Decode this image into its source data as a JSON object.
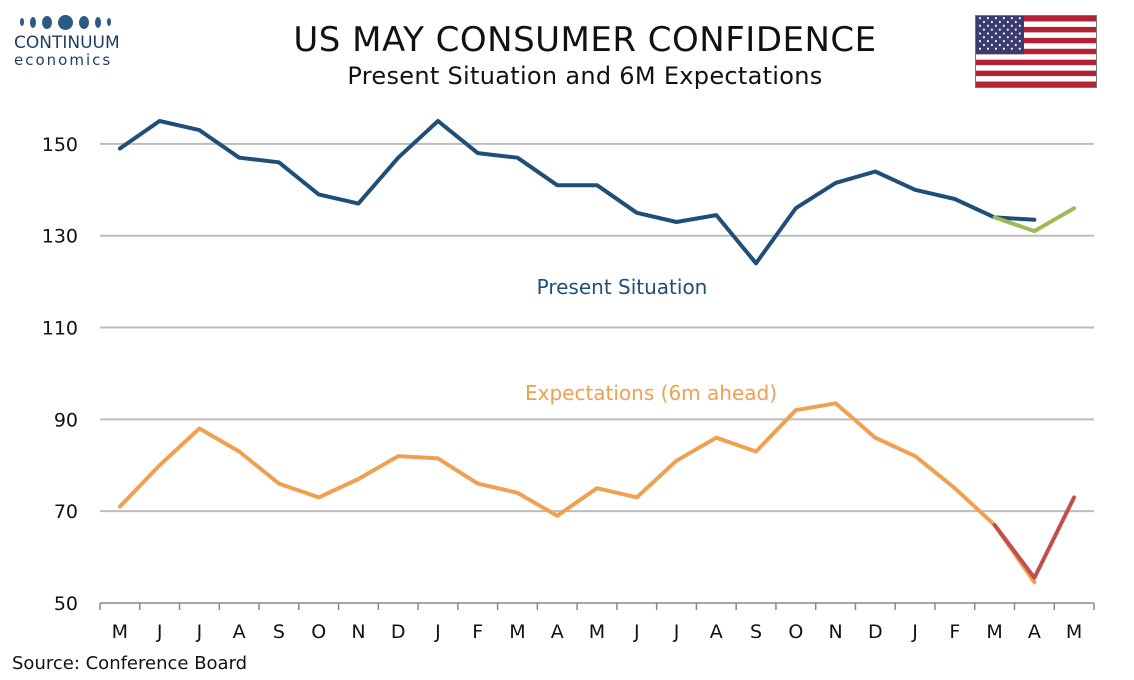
{
  "logo": {
    "name": "CONTINUUM",
    "sub": "economics"
  },
  "flag_icon": "us-flag-icon",
  "source": "Source: Conference Board",
  "chart_data": {
    "type": "line",
    "title": "US MAY CONSUMER CONFIDENCE",
    "subtitle": "Present Situation and 6M Expectations",
    "xlabel": "",
    "ylabel": "",
    "categories": [
      "M",
      "J",
      "J",
      "A",
      "S",
      "O",
      "N",
      "D",
      "J",
      "F",
      "M",
      "A",
      "M",
      "J",
      "J",
      "A",
      "S",
      "O",
      "N",
      "D",
      "J",
      "F",
      "M",
      "A",
      "M"
    ],
    "ylim": [
      50,
      160
    ],
    "yticks": [
      50,
      70,
      90,
      110,
      130,
      150
    ],
    "grid": "horizontal",
    "series": [
      {
        "name": "Present Situation",
        "color": "#1f4e79",
        "values": [
          149,
          155,
          153,
          147,
          146,
          139,
          137,
          147,
          155,
          148,
          147,
          141,
          141,
          135,
          133,
          134.5,
          124,
          136,
          141.5,
          144,
          140,
          138,
          134,
          133.5,
          null
        ]
      },
      {
        "name": "",
        "color": "#9bbb59",
        "values": [
          null,
          null,
          null,
          null,
          null,
          null,
          null,
          null,
          null,
          null,
          null,
          null,
          null,
          null,
          null,
          null,
          null,
          null,
          null,
          null,
          null,
          null,
          134,
          131,
          136
        ]
      },
      {
        "name": "Expectations (6m ahead)",
        "color": "#f0a050",
        "values": [
          71,
          80,
          88,
          83,
          76,
          73,
          77,
          82,
          81.5,
          76,
          74,
          69,
          75,
          73,
          81,
          86,
          83,
          92,
          93.5,
          86,
          82,
          75,
          67,
          54.5,
          null
        ]
      },
      {
        "name": "",
        "color": "#c0504d",
        "values": [
          null,
          null,
          null,
          null,
          null,
          null,
          null,
          null,
          null,
          null,
          null,
          null,
          null,
          null,
          null,
          null,
          null,
          null,
          null,
          null,
          null,
          null,
          67,
          55.5,
          73
        ]
      }
    ]
  }
}
